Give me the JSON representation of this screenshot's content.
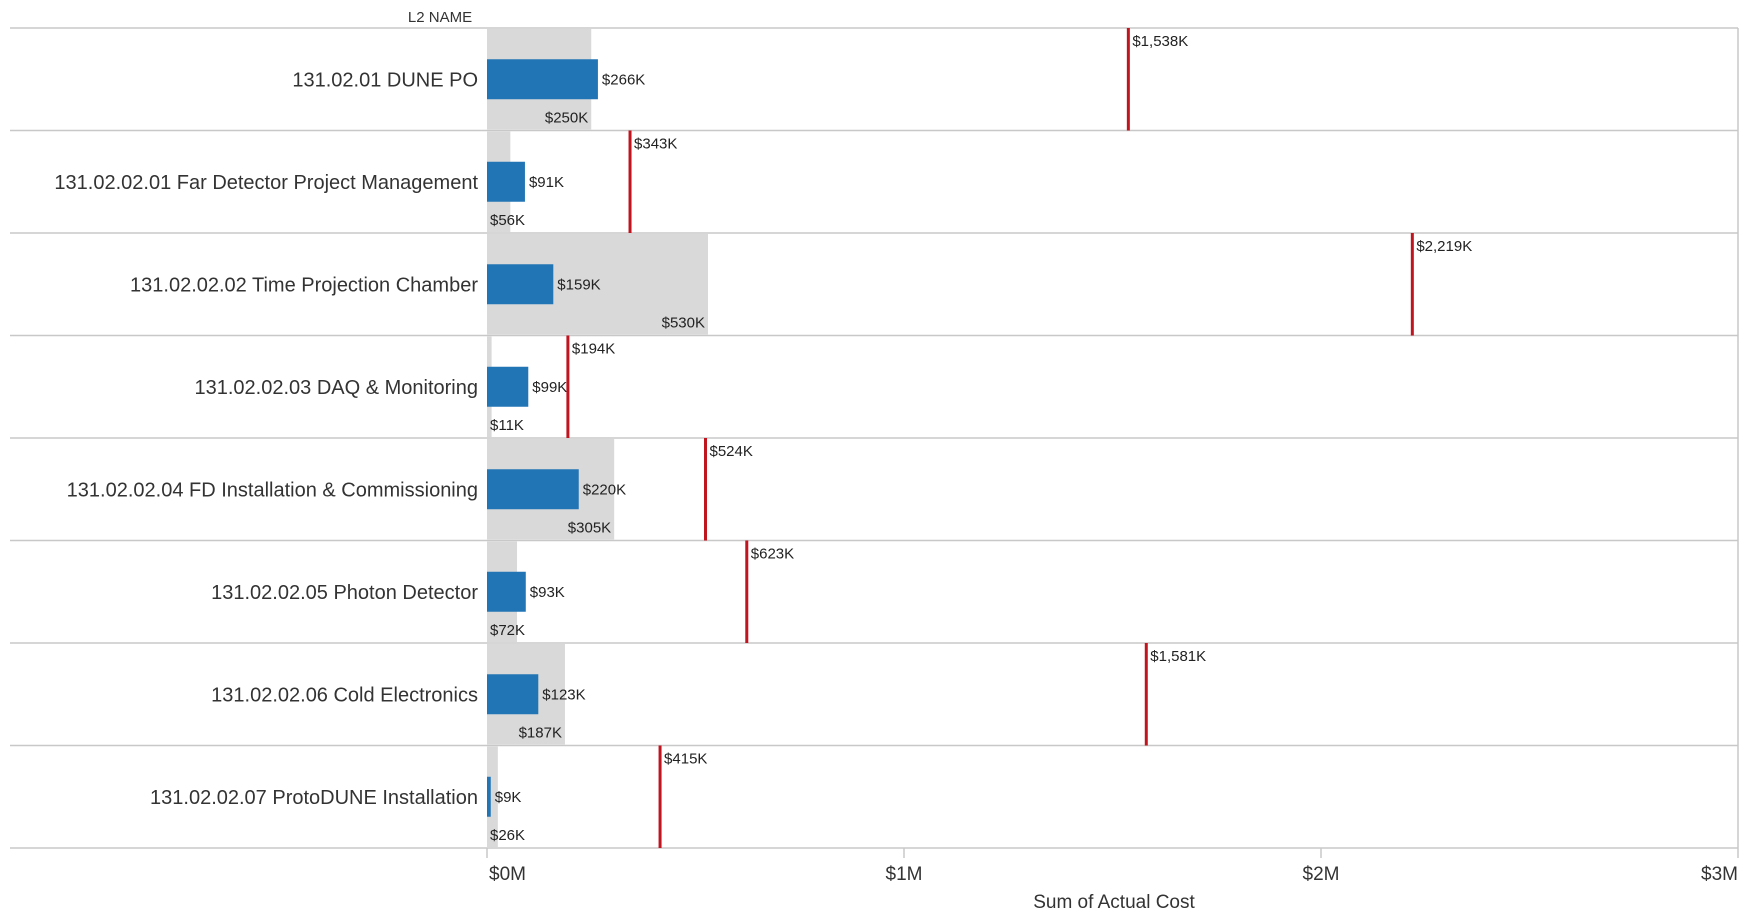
{
  "chart_data": {
    "type": "bar",
    "column_header": "L2 NAME",
    "xlabel": "Sum of Actual Cost",
    "xlim": [
      0,
      3000
    ],
    "x_ticks": [
      {
        "value": 0,
        "label": "$0M"
      },
      {
        "value": 1000,
        "label": "$1M"
      },
      {
        "value": 2000,
        "label": "$2M"
      },
      {
        "value": 3000,
        "label": "$3M"
      }
    ],
    "units": "thousands of dollars",
    "categories": [
      "131.02.01 DUNE PO",
      "131.02.02.01 Far Detector Project Management",
      "131.02.02.02 Time Projection Chamber",
      "131.02.02.03 DAQ & Monitoring",
      "131.02.02.04 FD Installation & Commissioning",
      "131.02.02.05 Photon Detector",
      "131.02.02.06 Cold Electronics",
      "131.02.02.07 ProtoDUNE Installation"
    ],
    "series": [
      {
        "role": "actual",
        "color": "#2275b5",
        "values": [
          266,
          91,
          159,
          99,
          220,
          93,
          123,
          9
        ],
        "labels": [
          "$266K",
          "$91K",
          "$159K",
          "$99K",
          "$220K",
          "$93K",
          "$123K",
          "$9K"
        ]
      },
      {
        "role": "background",
        "color": "#d9d9d9",
        "values": [
          250,
          56,
          530,
          11,
          305,
          72,
          187,
          26
        ],
        "labels": [
          "$250K",
          "$56K",
          "$530K",
          "$11K",
          "$305K",
          "$72K",
          "$187K",
          "$26K"
        ]
      },
      {
        "role": "reference",
        "color": "#c0141f",
        "values": [
          1538,
          343,
          2219,
          194,
          524,
          623,
          1581,
          415
        ],
        "labels": [
          "$1,538K",
          "$343K",
          "$2,219K",
          "$194K",
          "$524K",
          "$623K",
          "$1,581K",
          "$415K"
        ]
      }
    ],
    "grid": false,
    "legend": "none"
  }
}
